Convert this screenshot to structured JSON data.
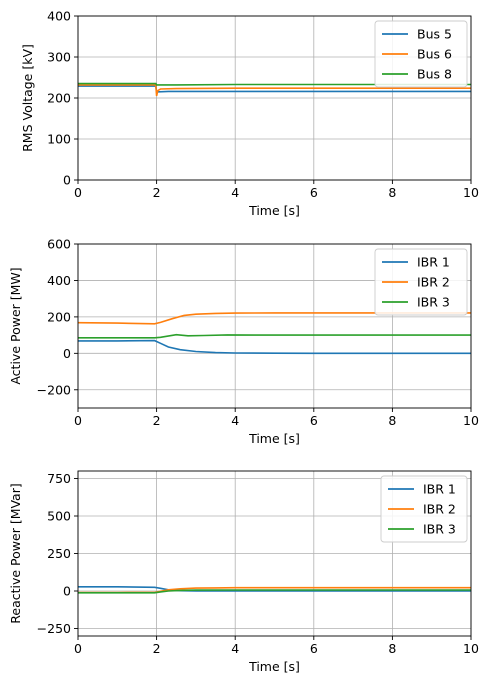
{
  "colors": {
    "c0": "#1f77b4",
    "c1": "#ff7f0e",
    "c2": "#2ca02c",
    "grid": "#b0b0b0",
    "axis": "#000000"
  },
  "chart_data": [
    {
      "type": "line",
      "xlabel": "Time [s]",
      "ylabel": "RMS Voltage [kV]",
      "xlim": [
        0,
        10
      ],
      "ylim": [
        0,
        400
      ],
      "xticks": [
        "0",
        "2",
        "4",
        "6",
        "8",
        "10"
      ],
      "yticks": [
        "0",
        "100",
        "200",
        "300",
        "400"
      ],
      "xtick_values": [
        0,
        2,
        4,
        6,
        8,
        10
      ],
      "ytick_values": [
        0,
        100,
        200,
        300,
        400
      ],
      "grid": true,
      "legend_position": "top-right",
      "series": [
        {
          "name": "Bus 5",
          "color": "#1f77b4",
          "x": [
            0,
            1.98,
            2.0,
            2.3,
            4,
            6,
            8,
            10
          ],
          "y": [
            229,
            229,
            215,
            216,
            216,
            216,
            216,
            216
          ]
        },
        {
          "name": "Bus 6",
          "color": "#ff7f0e",
          "x": [
            0,
            1.98,
            2.0,
            2.03,
            2.1,
            2.5,
            4,
            6,
            8,
            10
          ],
          "y": [
            232,
            232,
            205,
            218,
            222,
            223,
            224,
            224,
            224,
            224
          ]
        },
        {
          "name": "Bus 8",
          "color": "#2ca02c",
          "x": [
            0,
            1.98,
            2.0,
            2.5,
            4,
            6,
            8,
            10
          ],
          "y": [
            235,
            235,
            232,
            232,
            233,
            233,
            233,
            233
          ]
        }
      ]
    },
    {
      "type": "line",
      "xlabel": "Time [s]",
      "ylabel": "Active Power [MW]",
      "xlim": [
        0,
        10
      ],
      "ylim": [
        -300,
        600
      ],
      "xticks": [
        "0",
        "2",
        "4",
        "6",
        "8",
        "10"
      ],
      "yticks": [
        "−200",
        "0",
        "200",
        "400",
        "600"
      ],
      "xtick_values": [
        0,
        2,
        4,
        6,
        8,
        10
      ],
      "ytick_values": [
        -200,
        0,
        200,
        400,
        600
      ],
      "grid": true,
      "legend_position": "top-right",
      "series": [
        {
          "name": "IBR 1",
          "color": "#1f77b4",
          "x": [
            0,
            1,
            1.95,
            2.1,
            2.3,
            2.6,
            3.0,
            3.5,
            4.0,
            5,
            6,
            8,
            10
          ],
          "y": [
            68,
            68,
            70,
            55,
            35,
            20,
            10,
            4,
            2,
            1,
            0,
            0,
            0
          ]
        },
        {
          "name": "IBR 2",
          "color": "#ff7f0e",
          "x": [
            0,
            1,
            1.95,
            2.1,
            2.4,
            2.7,
            3.0,
            3.5,
            4.0,
            5,
            6,
            8,
            10
          ],
          "y": [
            168,
            166,
            162,
            170,
            190,
            208,
            215,
            219,
            221,
            222,
            222,
            222,
            222
          ]
        },
        {
          "name": "IBR 3",
          "color": "#2ca02c",
          "x": [
            0,
            1,
            1.95,
            2.1,
            2.5,
            2.8,
            3.2,
            3.8,
            4.5,
            6,
            8,
            10
          ],
          "y": [
            85,
            85,
            85,
            88,
            102,
            96,
            98,
            101,
            100,
            100,
            100,
            100
          ]
        }
      ]
    },
    {
      "type": "line",
      "xlabel": "Time [s]",
      "ylabel": "Reactive Power [MVar]",
      "xlim": [
        0,
        10
      ],
      "ylim": [
        -300,
        800
      ],
      "xticks": [
        "0",
        "2",
        "4",
        "6",
        "8",
        "10"
      ],
      "yticks": [
        "−250",
        "0",
        "250",
        "500",
        "750"
      ],
      "xtick_values": [
        0,
        2,
        4,
        6,
        8,
        10
      ],
      "ytick_values": [
        -250,
        0,
        250,
        500,
        750
      ],
      "grid": true,
      "legend_position": "top-right",
      "series": [
        {
          "name": "IBR 1",
          "color": "#1f77b4",
          "x": [
            0,
            1,
            1.95,
            2.1,
            2.3,
            2.6,
            3.0,
            4,
            6,
            8,
            10
          ],
          "y": [
            28,
            28,
            25,
            18,
            8,
            2,
            0,
            0,
            0,
            0,
            0
          ]
        },
        {
          "name": "IBR 2",
          "color": "#ff7f0e",
          "x": [
            0,
            1,
            1.95,
            2.1,
            2.3,
            2.6,
            3.0,
            3.5,
            4,
            6,
            8,
            10
          ],
          "y": [
            -10,
            -10,
            -9,
            -2,
            8,
            15,
            19,
            21,
            22,
            22,
            22,
            22
          ]
        },
        {
          "name": "IBR 3",
          "color": "#2ca02c",
          "x": [
            0,
            1,
            1.95,
            2.1,
            2.3,
            2.6,
            3.0,
            4,
            6,
            8,
            10
          ],
          "y": [
            -12,
            -12,
            -12,
            -6,
            0,
            4,
            6,
            7,
            7,
            7,
            7
          ]
        }
      ]
    }
  ]
}
